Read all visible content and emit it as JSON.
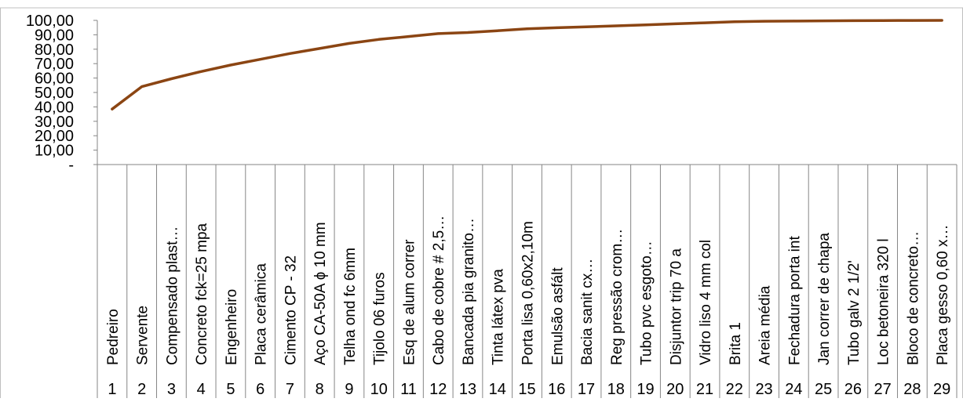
{
  "chart_data": {
    "type": "line",
    "title": "",
    "xlabel": "",
    "ylabel": "",
    "ylim": [
      0,
      100
    ],
    "y_ticks": [
      "-",
      "10,00",
      "20,00",
      "30,00",
      "40,00",
      "50,00",
      "60,00",
      "70,00",
      "80,00",
      "90,00",
      "100,00"
    ],
    "grid": false,
    "legend": "none",
    "line_color": "#8B4513",
    "categories": [
      "Pedreiro",
      "Servente",
      "Compensado plast…",
      "Concreto fck=25 mpa",
      "Engenheiro",
      "Placa cerâmica",
      "Cimento CP - 32",
      "Aço CA-50A ɸ 10 mm",
      "Telha ond fc 6mm",
      "Tijolo 06 furos",
      "Esq de alum correr",
      "Cabo de cobre # 2,5…",
      "Bancada pia granito…",
      "Tinta látex pva",
      "Porta lisa 0,60x2,10m",
      "Emulsão asfált",
      "Bacia sanit cx…",
      "Reg pressão crom…",
      "Tubo pvc esgoto…",
      "Disjuntor trip 70 a",
      "Vidro liso 4 mm col",
      "Brita 1",
      "Areia média",
      "Fechadura porta int",
      "Jan correr de chapa",
      "Tubo galv 2 1/2'",
      "Loc betoneira 320 l",
      "Bloco de concreto…",
      "Placa gesso 0,60 x…"
    ],
    "numbers": [
      "1",
      "2",
      "3",
      "4",
      "5",
      "6",
      "7",
      "8",
      "9",
      "10",
      "11",
      "12",
      "13",
      "14",
      "15",
      "16",
      "17",
      "18",
      "19",
      "20",
      "21",
      "22",
      "23",
      "24",
      "25",
      "26",
      "27",
      "28",
      "29"
    ],
    "series": [
      {
        "values": [
          38.5,
          54.0,
          59.5,
          64.5,
          69.0,
          73.0,
          77.0,
          80.5,
          84.0,
          86.8,
          88.8,
          90.8,
          91.6,
          92.8,
          94.2,
          94.9,
          95.5,
          96.2,
          96.9,
          97.6,
          98.3,
          99.1,
          99.4,
          99.5,
          99.7,
          99.8,
          99.9,
          99.95,
          100.0
        ]
      }
    ]
  }
}
